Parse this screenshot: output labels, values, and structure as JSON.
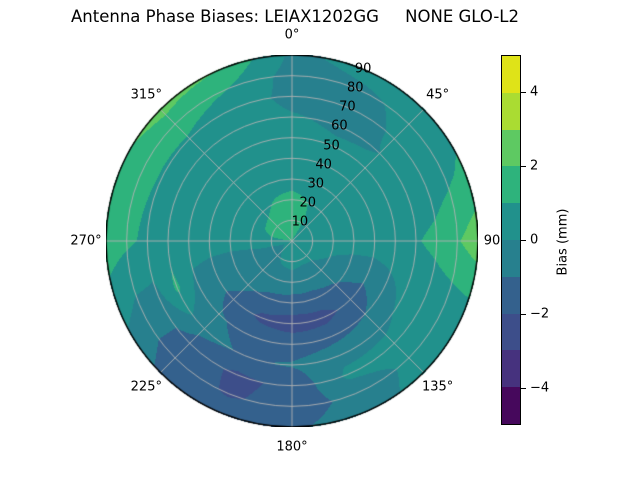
{
  "title": "Antenna Phase Biases: LEIAX1202GG     NONE GLO-L2",
  "chart_data": {
    "type": "polar_contour",
    "title": "Antenna Phase Biases: LEIAX1202GG     NONE GLO-L2",
    "antenna": "LEIAX1202GG",
    "dome": "NONE",
    "signal": "GLO-L2",
    "grid_on": true,
    "gridline_color": "#b2b2b2",
    "outline_color": "#000000",
    "background": "#ffffff",
    "radial_axis": {
      "unit": "deg",
      "min": 0,
      "max": 90,
      "tick_step": 10,
      "tick_labels": [
        "10",
        "20",
        "30",
        "40",
        "50",
        "60",
        "70",
        "80",
        "90"
      ],
      "tick_label_azimuth_deg": 22.5
    },
    "angle_axis": {
      "unit": "deg",
      "direction": "clockwise",
      "zero_location": "top",
      "labels": [
        {
          "text": "0°",
          "deg": 0
        },
        {
          "text": "45°",
          "deg": 45
        },
        {
          "text": "90",
          "deg": 90,
          "offset": 14
        },
        {
          "text": "135°",
          "deg": 135
        },
        {
          "text": "180°",
          "deg": 180
        },
        {
          "text": "225°",
          "deg": 225
        },
        {
          "text": "270°",
          "deg": 270
        },
        {
          "text": "315°",
          "deg": 315
        }
      ]
    },
    "levels": [
      -5,
      -4,
      -3,
      -2,
      -1,
      0,
      1,
      2,
      3,
      4,
      5
    ],
    "band_colors": [
      "#46085c",
      "#46327e",
      "#3d4e8a",
      "#34618d",
      "#27808e",
      "#21918c",
      "#2eb37c",
      "#5ec962",
      "#aadc32",
      "#dfe318"
    ],
    "colorbar": {
      "label": "Bias (mm)",
      "min": -5,
      "max": 5,
      "ticks": [
        -4,
        -2,
        0,
        2,
        4
      ],
      "position": "right"
    },
    "field": {
      "description": "Phase bias (mm) sampled on azimuth x zenith grid, estimated from contour bands",
      "azimuth_deg": [
        0,
        22.5,
        45,
        67.5,
        90,
        112.5,
        135,
        157.5,
        180,
        202.5,
        225,
        247.5,
        270,
        292.5,
        315,
        337.5
      ],
      "zenith_deg": [
        0,
        10,
        20,
        30,
        40,
        50,
        60,
        70,
        80,
        90
      ],
      "bias_mm": [
        [
          1.3,
          1.1,
          0.7,
          0.5,
          0.4,
          0.3,
          0.3,
          0.3,
          0.3,
          0.3,
          0.2,
          0.3,
          0.9,
          1.2,
          1.3,
          1.4
        ],
        [
          1.4,
          1.2,
          0.6,
          0.3,
          0.3,
          0.2,
          0.1,
          0.1,
          0.2,
          0.1,
          -0.1,
          -0.4,
          0.8,
          1.2,
          1.3,
          1.4
        ],
        [
          1.3,
          1.0,
          0.5,
          0.3,
          0.4,
          0.0,
          -0.2,
          -0.3,
          -0.3,
          -0.3,
          -0.2,
          -0.3,
          0.3,
          0.7,
          0.8,
          1.1
        ],
        [
          0.6,
          0.5,
          0.3,
          0.4,
          0.5,
          -0.4,
          -1.1,
          -1.5,
          -1.5,
          -1.3,
          -0.8,
          -0.4,
          0.3,
          0.5,
          0.6,
          0.6
        ],
        [
          0.5,
          0.3,
          0.2,
          0.4,
          0.6,
          -0.6,
          -1.7,
          -2.3,
          -2.4,
          -2.2,
          -1.3,
          -0.4,
          0.4,
          0.6,
          0.6,
          0.6
        ],
        [
          0.4,
          0.2,
          0.1,
          0.4,
          0.7,
          -0.2,
          -1.0,
          -1.4,
          -1.5,
          -1.3,
          -0.9,
          -0.2,
          0.5,
          0.7,
          0.6,
          0.5
        ],
        [
          0.1,
          -0.2,
          0.0,
          0.4,
          0.9,
          0.3,
          -0.2,
          -0.3,
          -0.9,
          -1.1,
          -0.7,
          1.2,
          0.7,
          0.8,
          0.7,
          0.4
        ],
        [
          -0.3,
          -0.4,
          0.1,
          0.5,
          1.3,
          0.4,
          0.3,
          0.2,
          -1.8,
          -2.2,
          -1.4,
          -0.3,
          0.8,
          0.9,
          0.9,
          0.5
        ],
        [
          -0.4,
          -0.2,
          0.2,
          0.8,
          1.9,
          0.5,
          0.2,
          -0.6,
          -1.7,
          -2.1,
          -1.5,
          -0.2,
          1.2,
          1.4,
          1.5,
          1.0
        ],
        [
          -0.2,
          0.3,
          0.4,
          1.2,
          2.6,
          0.6,
          0.3,
          -0.4,
          -1.2,
          -1.5,
          -1.2,
          0.4,
          1.6,
          1.8,
          2.3,
          2.0
        ]
      ]
    }
  }
}
